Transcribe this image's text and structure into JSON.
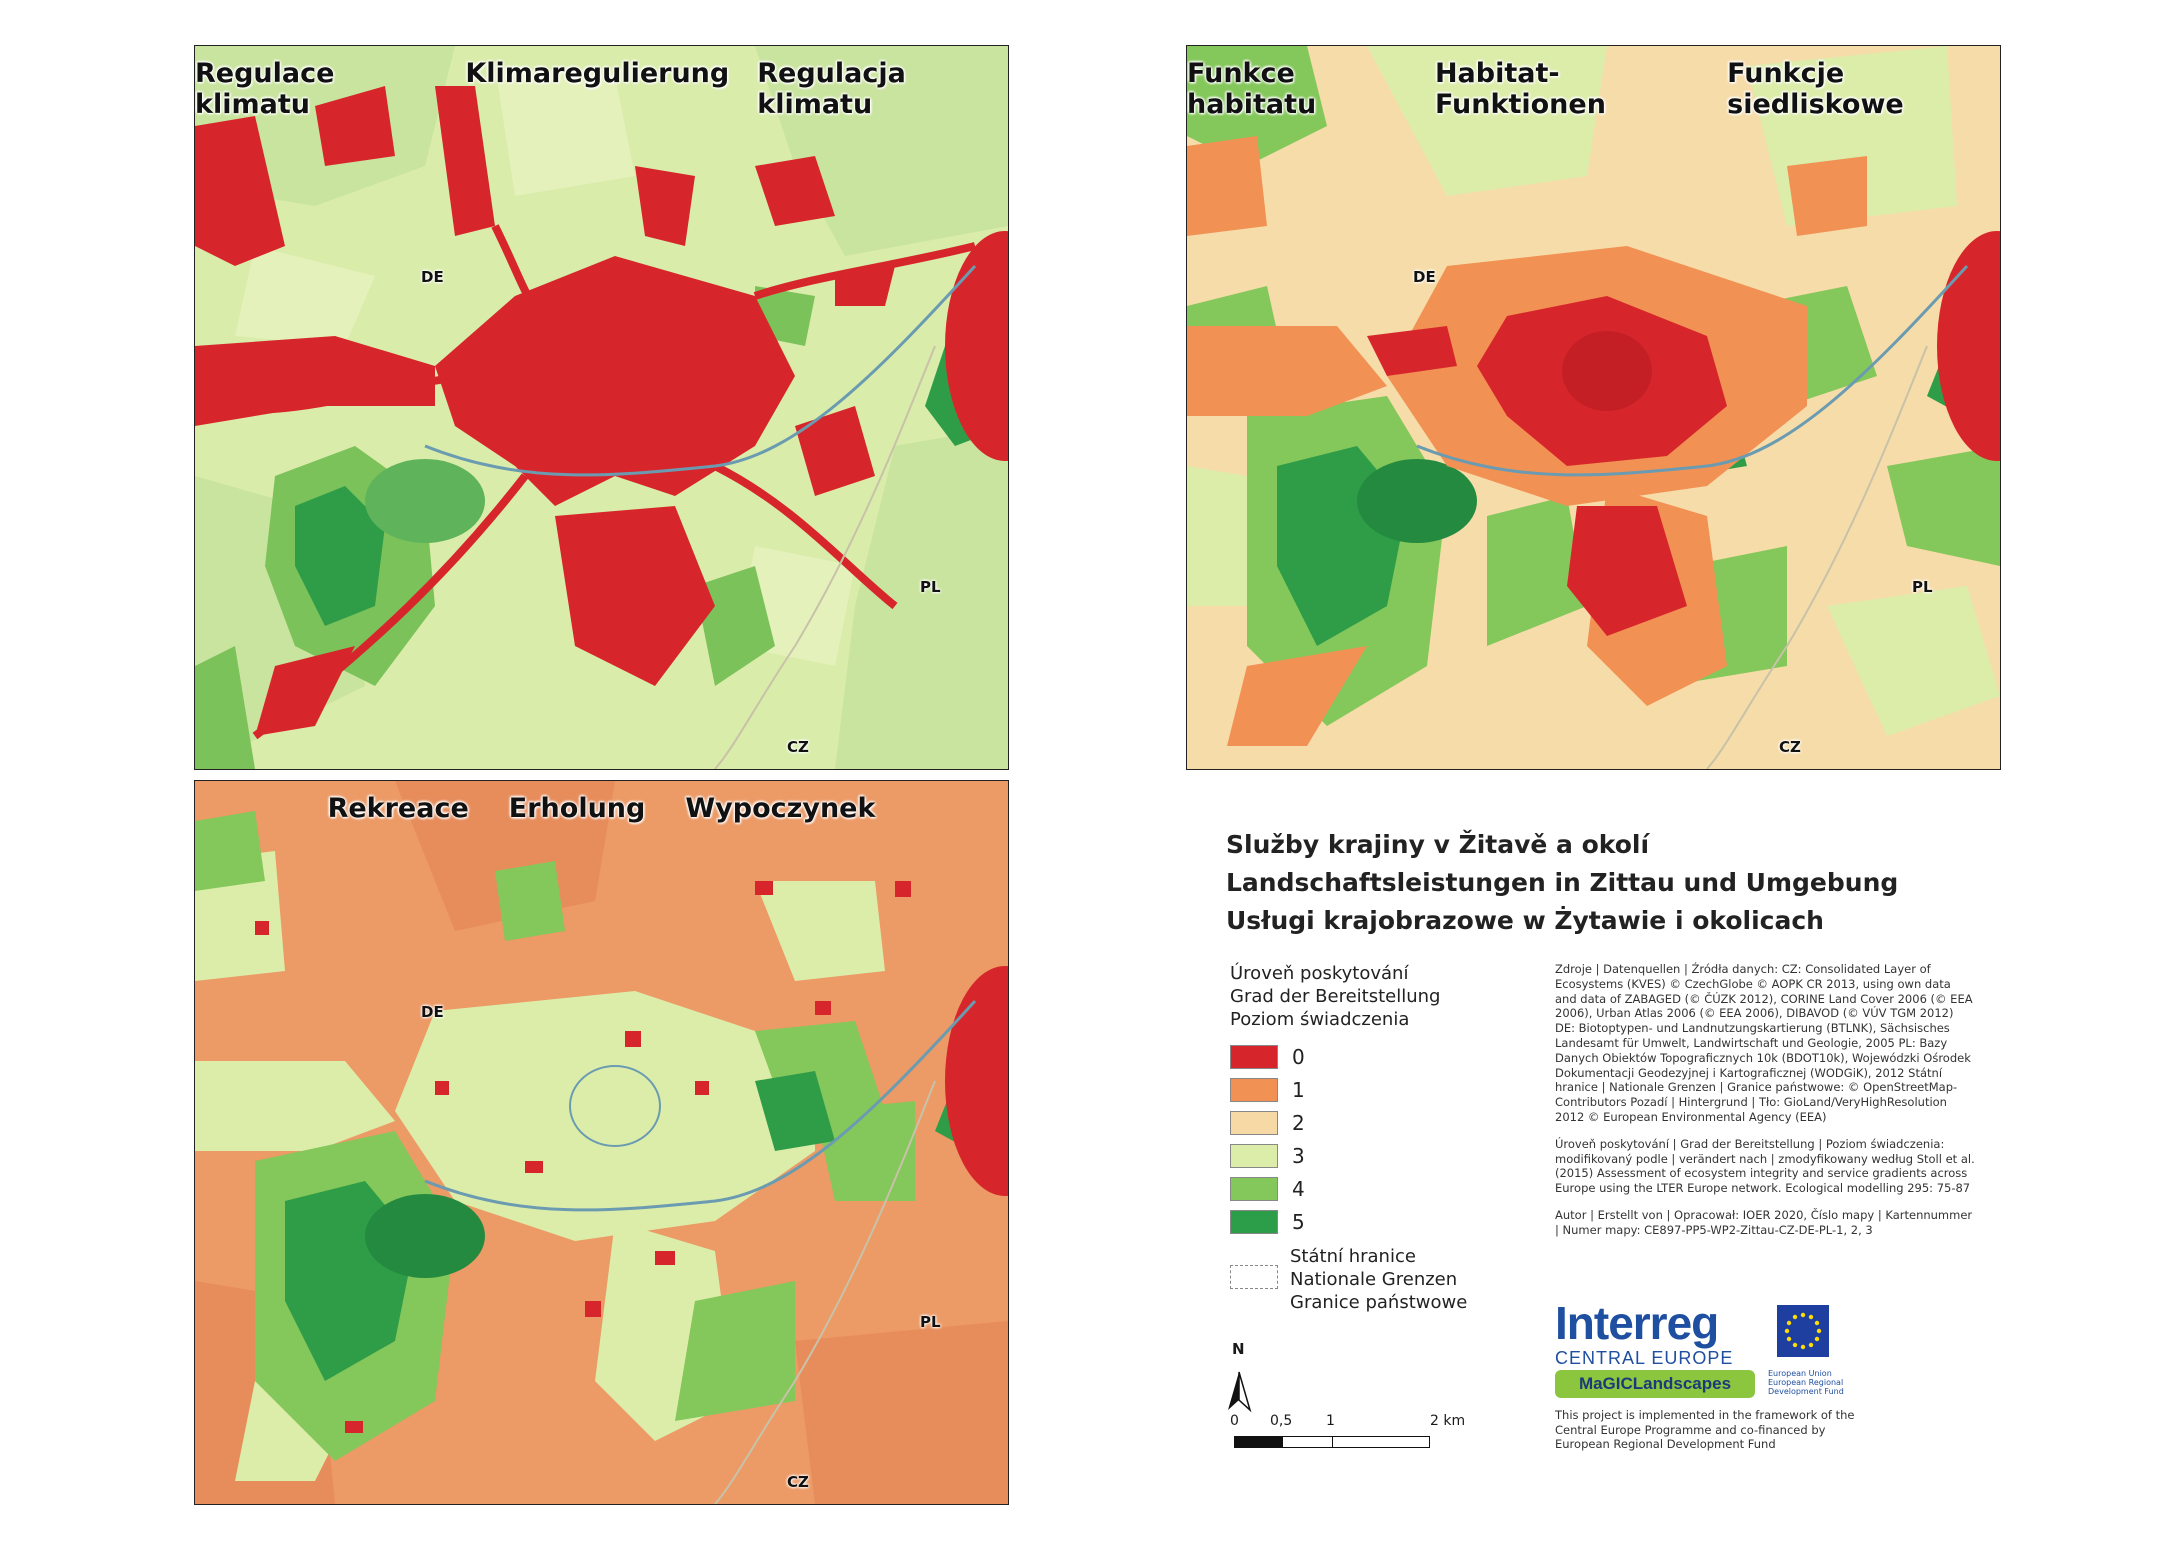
{
  "maps": [
    {
      "title_cz": "Regulace klimatu",
      "title_de": "Klimaregulierung",
      "title_pl": "Regulacja klimatu"
    },
    {
      "title_cz": "Funkce habitatu",
      "title_de": "Habitat-Funktionen",
      "title_pl": "Funkcje siedliskowe"
    },
    {
      "title_cz": "Rekreace",
      "title_de": "Erholung",
      "title_pl": "Wypoczynek"
    }
  ],
  "country_labels": {
    "de": "DE",
    "pl": "PL",
    "cz": "CZ"
  },
  "legend": {
    "title_cz": "Služby krajiny v Žitavě a okolí",
    "title_de": "Landschaftsleistungen in Zittau und Umgebung",
    "title_pl": "Usługi krajobrazowe w Żytawie i okolicach",
    "levels_cz": "Úroveň poskytování",
    "levels_de": "Grad der Bereitstellung",
    "levels_pl": "Poziom świadczenia",
    "levels": [
      {
        "value": "0",
        "color": "#d7262b"
      },
      {
        "value": "1",
        "color": "#f29154"
      },
      {
        "value": "2",
        "color": "#f7d9a5"
      },
      {
        "value": "3",
        "color": "#dcedaa"
      },
      {
        "value": "4",
        "color": "#84c75a"
      },
      {
        "value": "5",
        "color": "#2c9d48"
      }
    ],
    "boundary_cz": "Státní hranice",
    "boundary_de": "Nationale Grenzen",
    "boundary_pl": "Granice państwowe"
  },
  "sources": {
    "p1": "Zdroje | Datenquellen | Źródła danych: CZ: Consolidated Layer of Ecosystems (KVES) © CzechGlobe © AOPK CR 2013, using own data and data of ZABAGED (© ČÚZK 2012), CORINE Land Cover 2006 (© EEA 2006), Urban Atlas 2006 (© EEA 2006), DIBAVOD (© VÚV TGM 2012) DE: Biotoptypen- und Landnutzungskartierung (BTLNK), Sächsisches Landesamt für Umwelt, Landwirtschaft und Geologie, 2005 PL: Bazy Danych Obiektów Topograficznych 10k (BDOT10k), Wojewódzki Ośrodek Dokumentacji Geodezyjnej i Kartograficznej (WODGiK), 2012 Státní hranice | Nationale Grenzen | Granice państwowe: © OpenStreetMap-Contributors Pozadí | Hintergrund | Tło: GioLand/VeryHighResolution 2012 © European Environmental Agency (EEA)",
    "p2": "Úroveň poskytování | Grad der Bereitstellung | Poziom świadczenia: modifikovaný podle | verändert nach | zmodyfikowany według Stoll et al. (2015) Assessment of ecosystem integrity and service gradients across Europe using the LTER Europe network. Ecological modelling 295: 75-87",
    "p3": "Autor | Erstellt von | Opracował: IOER 2020, Číslo mapy | Kartennummer | Numer mapy: CE897-PP5-WP2-Zittau-CZ-DE-PL-1, 2, 3"
  },
  "north_label": "N",
  "scale": {
    "l0": "0",
    "l1": "0,5",
    "l2": "1",
    "l3": "2 km"
  },
  "logo": {
    "word": "Interreg",
    "sub": "CENTRAL EUROPE",
    "project": "MaGICLandscapes",
    "eu": "European Union European Regional Development Fund"
  },
  "funding": "This project is implemented in the framework of the Central Europe Programme and co-financed by European Regional Development Fund"
}
